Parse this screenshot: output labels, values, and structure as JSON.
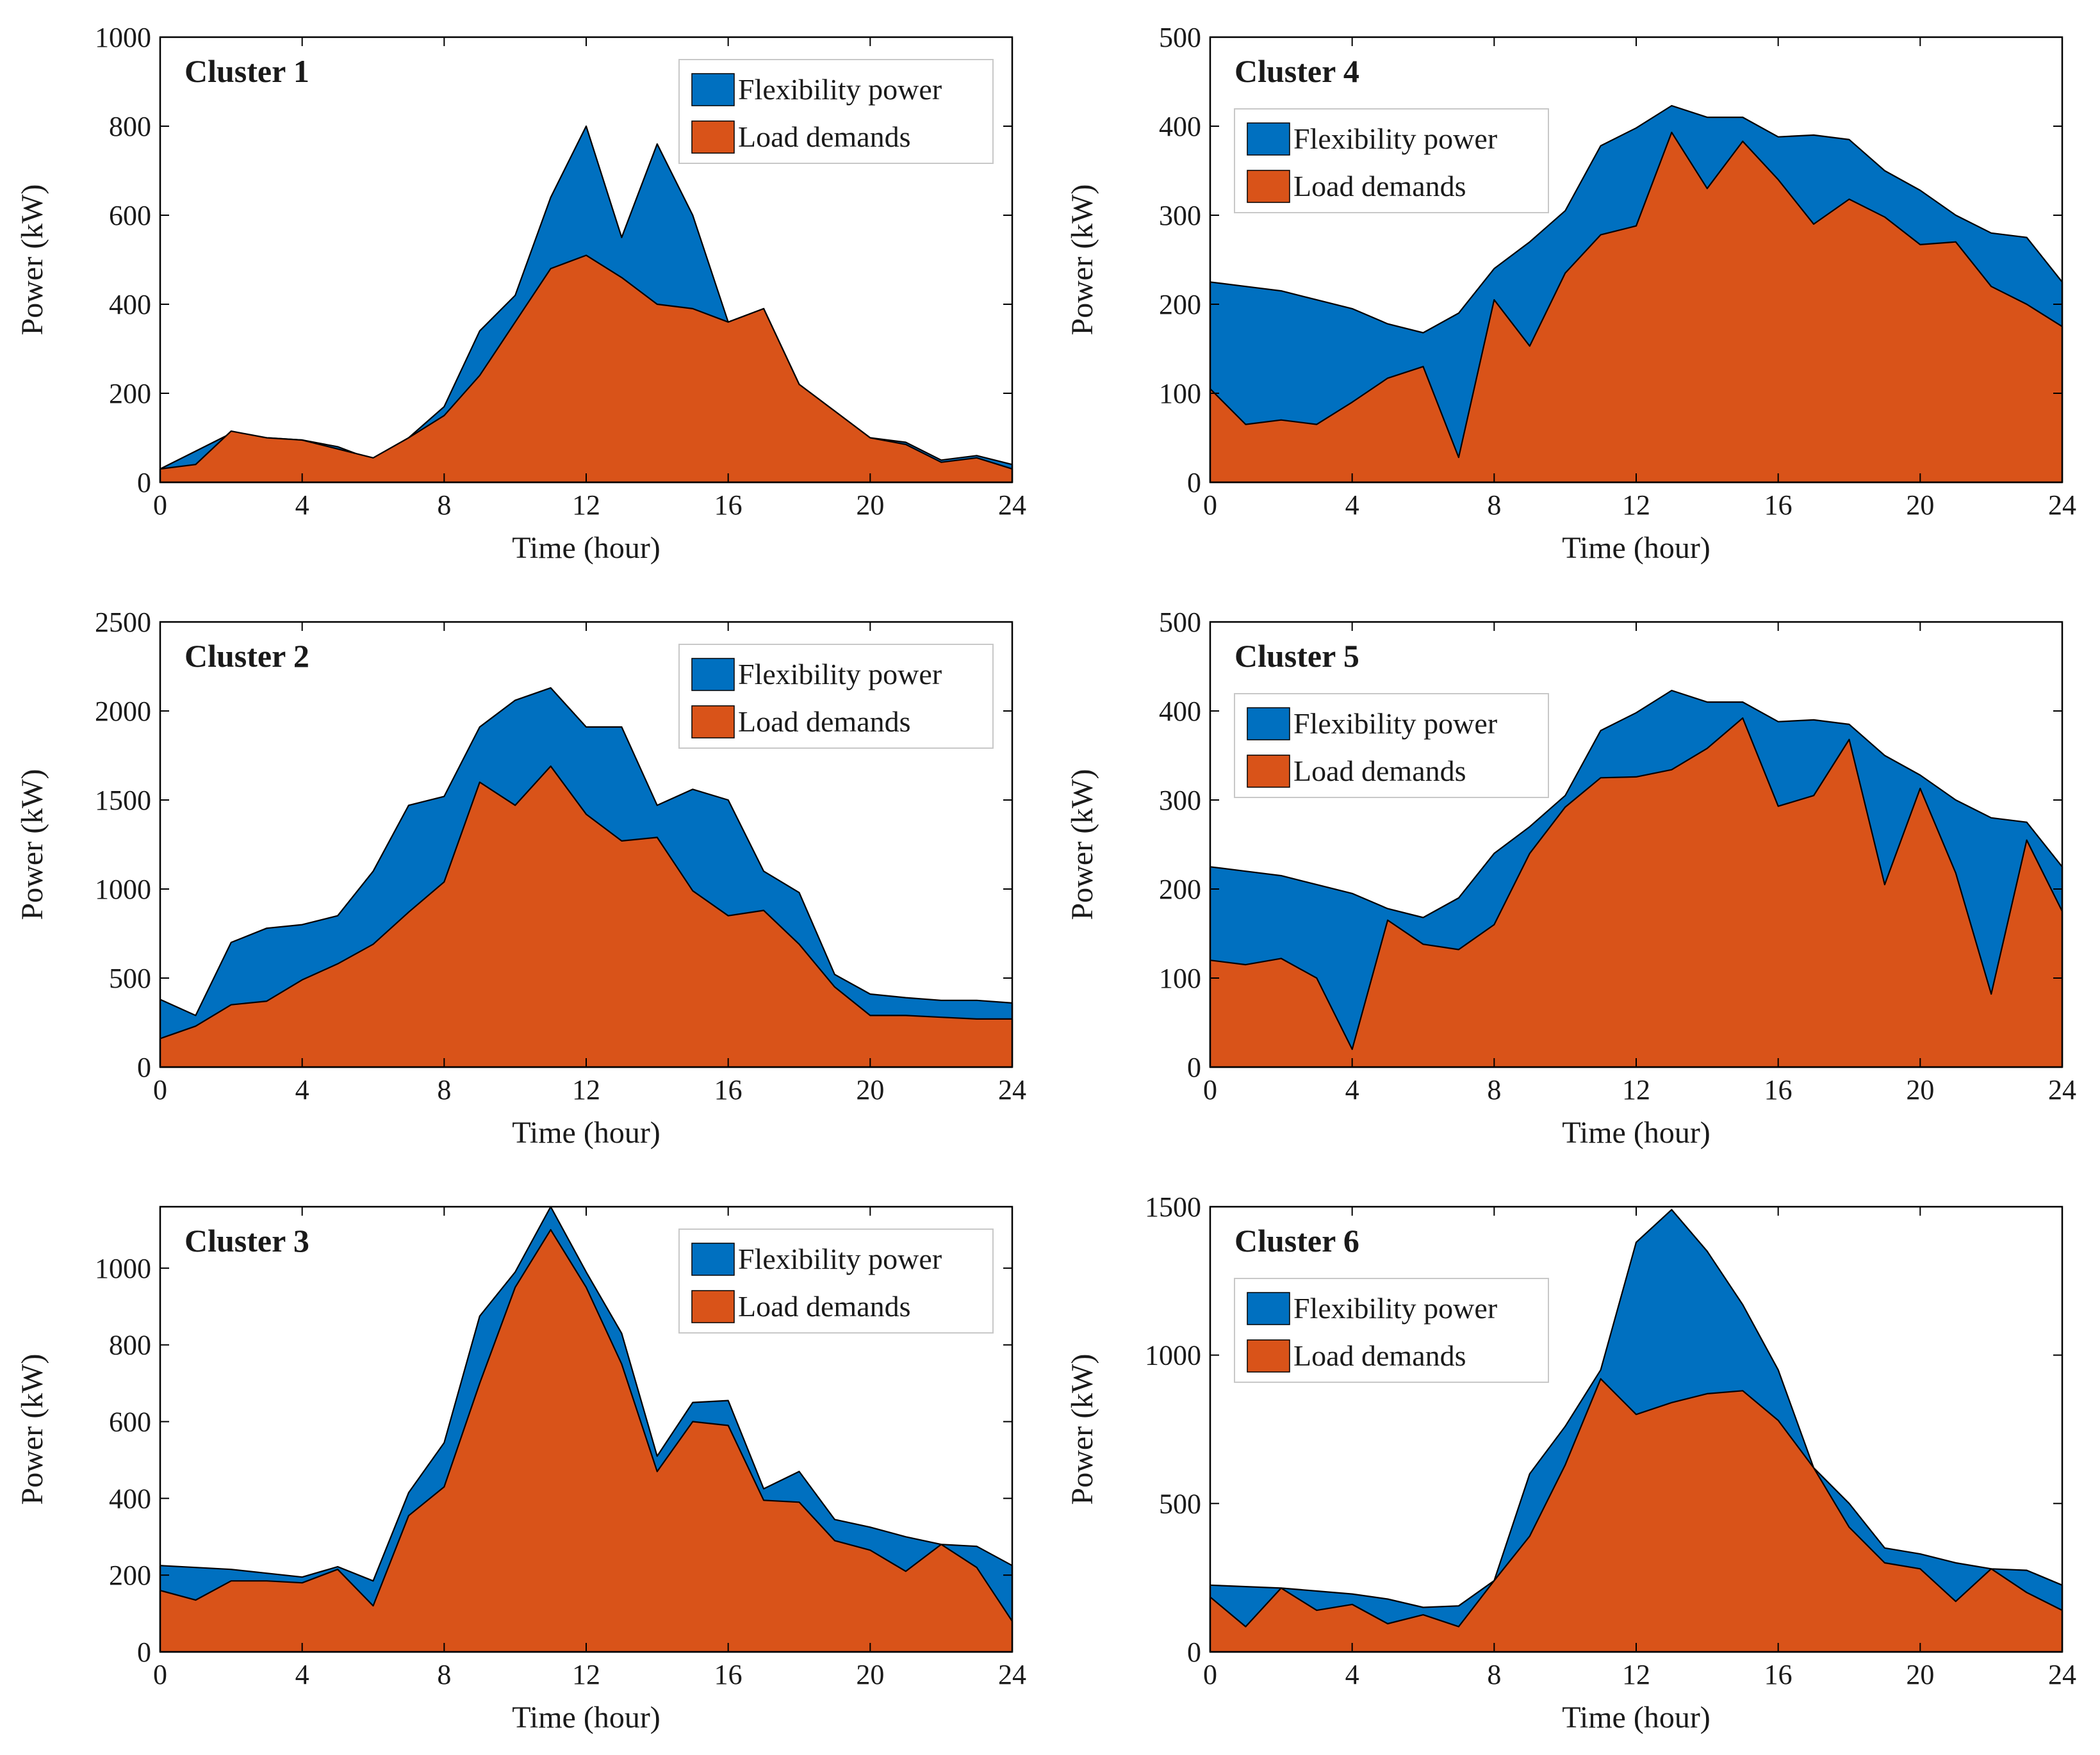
{
  "colors": {
    "flexibility": "#0070C0",
    "load": "#D95319",
    "outline": "#000000",
    "legend_border": "#c8c8c8",
    "background": "#ffffff"
  },
  "legend": {
    "flexibility_label": "Flexibility power",
    "load_label": "Load demands"
  },
  "axis_labels": {
    "x": "Time  (hour)",
    "y": "Power (kW)"
  },
  "chart_data": [
    {
      "type": "area",
      "title": "Cluster 1",
      "xlabel": "Time  (hour)",
      "ylabel": "Power (kW)",
      "xlim": [
        0,
        24
      ],
      "ylim": [
        0,
        1000
      ],
      "xticks": [
        0,
        4,
        8,
        12,
        16,
        20,
        24
      ],
      "yticks": [
        0,
        200,
        400,
        600,
        800,
        1000
      ],
      "legend_position": "top-right",
      "x": [
        0,
        1,
        2,
        3,
        4,
        5,
        6,
        7,
        8,
        9,
        10,
        11,
        12,
        13,
        14,
        15,
        16,
        17,
        18,
        19,
        20,
        21,
        22,
        23,
        24
      ],
      "series": [
        {
          "name": "Flexibility power",
          "values": [
            30,
            70,
            110,
            100,
            95,
            80,
            50,
            100,
            170,
            340,
            420,
            640,
            800,
            550,
            760,
            600,
            360,
            390,
            220,
            160,
            100,
            90,
            50,
            60,
            40
          ]
        },
        {
          "name": "Load demands",
          "values": [
            30,
            40,
            115,
            100,
            95,
            75,
            55,
            100,
            150,
            240,
            360,
            480,
            510,
            460,
            400,
            390,
            360,
            390,
            220,
            160,
            100,
            85,
            45,
            55,
            30
          ]
        }
      ]
    },
    {
      "type": "area",
      "title": "Cluster 4",
      "xlabel": "Time  (hour)",
      "ylabel": "Power (kW)",
      "xlim": [
        0,
        24
      ],
      "ylim": [
        0,
        500
      ],
      "xticks": [
        0,
        4,
        8,
        12,
        16,
        20,
        24
      ],
      "yticks": [
        0,
        100,
        200,
        300,
        400,
        500
      ],
      "legend_position": "top-left",
      "x": [
        0,
        1,
        2,
        3,
        4,
        5,
        6,
        7,
        8,
        9,
        10,
        11,
        12,
        13,
        14,
        15,
        16,
        17,
        18,
        19,
        20,
        21,
        22,
        23,
        24
      ],
      "series": [
        {
          "name": "Flexibility power",
          "values": [
            225,
            220,
            215,
            205,
            195,
            178,
            168,
            190,
            240,
            270,
            305,
            378,
            398,
            423,
            410,
            410,
            388,
            390,
            385,
            350,
            328,
            300,
            280,
            275,
            225
          ]
        },
        {
          "name": "Load demands",
          "values": [
            105,
            65,
            70,
            65,
            90,
            117,
            130,
            28,
            205,
            153,
            235,
            278,
            288,
            393,
            330,
            383,
            340,
            290,
            318,
            298,
            267,
            270,
            220,
            200,
            175
          ]
        }
      ]
    },
    {
      "type": "area",
      "title": "Cluster 2",
      "xlabel": "Time  (hour)",
      "ylabel": "Power (kW)",
      "xlim": [
        0,
        24
      ],
      "ylim": [
        0,
        2500
      ],
      "xticks": [
        0,
        4,
        8,
        12,
        16,
        20,
        24
      ],
      "yticks": [
        0,
        500,
        1000,
        1500,
        2000,
        2500
      ],
      "legend_position": "top-right",
      "x": [
        0,
        1,
        2,
        3,
        4,
        5,
        6,
        7,
        8,
        9,
        10,
        11,
        12,
        13,
        14,
        15,
        16,
        17,
        18,
        19,
        20,
        21,
        22,
        23,
        24
      ],
      "series": [
        {
          "name": "Flexibility power",
          "values": [
            380,
            290,
            700,
            780,
            800,
            850,
            1100,
            1470,
            1520,
            1910,
            2060,
            2130,
            1910,
            1910,
            1470,
            1560,
            1500,
            1100,
            980,
            520,
            410,
            390,
            375,
            375,
            360
          ]
        },
        {
          "name": "Load demands",
          "values": [
            160,
            230,
            350,
            370,
            490,
            580,
            690,
            870,
            1040,
            1600,
            1470,
            1690,
            1420,
            1270,
            1290,
            990,
            850,
            880,
            690,
            450,
            290,
            290,
            280,
            270,
            270
          ]
        }
      ]
    },
    {
      "type": "area",
      "title": "Cluster 5",
      "xlabel": "Time  (hour)",
      "ylabel": "Power (kW)",
      "xlim": [
        0,
        24
      ],
      "ylim": [
        0,
        500
      ],
      "xticks": [
        0,
        4,
        8,
        12,
        16,
        20,
        24
      ],
      "yticks": [
        0,
        100,
        200,
        300,
        400,
        500
      ],
      "legend_position": "top-left",
      "x": [
        0,
        1,
        2,
        3,
        4,
        5,
        6,
        7,
        8,
        9,
        10,
        11,
        12,
        13,
        14,
        15,
        16,
        17,
        18,
        19,
        20,
        21,
        22,
        23,
        24
      ],
      "series": [
        {
          "name": "Flexibility power",
          "values": [
            225,
            220,
            215,
            205,
            195,
            178,
            168,
            190,
            240,
            270,
            305,
            378,
            398,
            423,
            410,
            410,
            388,
            390,
            385,
            350,
            328,
            300,
            280,
            275,
            225
          ]
        },
        {
          "name": "Load demands",
          "values": [
            120,
            115,
            122,
            100,
            20,
            165,
            138,
            132,
            160,
            240,
            292,
            325,
            326,
            334,
            358,
            392,
            293,
            305,
            368,
            205,
            313,
            218,
            82,
            255,
            175
          ]
        }
      ]
    },
    {
      "type": "area",
      "title": "Cluster 3",
      "xlabel": "Time  (hour)",
      "ylabel": "Power (kW)",
      "xlim": [
        0,
        24
      ],
      "ylim": [
        0,
        1160
      ],
      "xticks": [
        0,
        4,
        8,
        12,
        16,
        20,
        24
      ],
      "yticks": [
        0,
        200,
        400,
        600,
        800,
        1000
      ],
      "legend_position": "top-right",
      "x": [
        0,
        1,
        2,
        3,
        4,
        5,
        6,
        7,
        8,
        9,
        10,
        11,
        12,
        13,
        14,
        15,
        16,
        17,
        18,
        19,
        20,
        21,
        22,
        23,
        24
      ],
      "series": [
        {
          "name": "Flexibility power",
          "values": [
            225,
            220,
            215,
            205,
            195,
            222,
            185,
            415,
            545,
            875,
            990,
            1160,
            990,
            830,
            510,
            650,
            655,
            425,
            470,
            345,
            325,
            300,
            280,
            275,
            225
          ]
        },
        {
          "name": "Load demands",
          "values": [
            160,
            135,
            185,
            185,
            180,
            215,
            120,
            355,
            430,
            700,
            950,
            1100,
            950,
            750,
            470,
            600,
            590,
            395,
            390,
            290,
            265,
            210,
            280,
            220,
            80
          ]
        }
      ]
    },
    {
      "type": "area",
      "title": "Cluster 6",
      "xlabel": "Time  (hour)",
      "ylabel": "Power (kW)",
      "xlim": [
        0,
        24
      ],
      "ylim": [
        0,
        1500
      ],
      "xticks": [
        0,
        4,
        8,
        12,
        16,
        20,
        24
      ],
      "yticks": [
        0,
        500,
        1000,
        1500
      ],
      "legend_position": "top-left",
      "x": [
        0,
        1,
        2,
        3,
        4,
        5,
        6,
        7,
        8,
        9,
        10,
        11,
        12,
        13,
        14,
        15,
        16,
        17,
        18,
        19,
        20,
        21,
        22,
        23,
        24
      ],
      "series": [
        {
          "name": "Flexibility power",
          "values": [
            225,
            220,
            215,
            205,
            195,
            178,
            150,
            155,
            240,
            600,
            760,
            950,
            1380,
            1490,
            1350,
            1170,
            950,
            620,
            500,
            350,
            330,
            300,
            280,
            275,
            225
          ]
        },
        {
          "name": "Load demands",
          "values": [
            185,
            85,
            215,
            140,
            160,
            95,
            125,
            85,
            240,
            390,
            630,
            920,
            800,
            840,
            870,
            880,
            780,
            620,
            420,
            300,
            280,
            170,
            280,
            200,
            140
          ]
        }
      ]
    }
  ]
}
